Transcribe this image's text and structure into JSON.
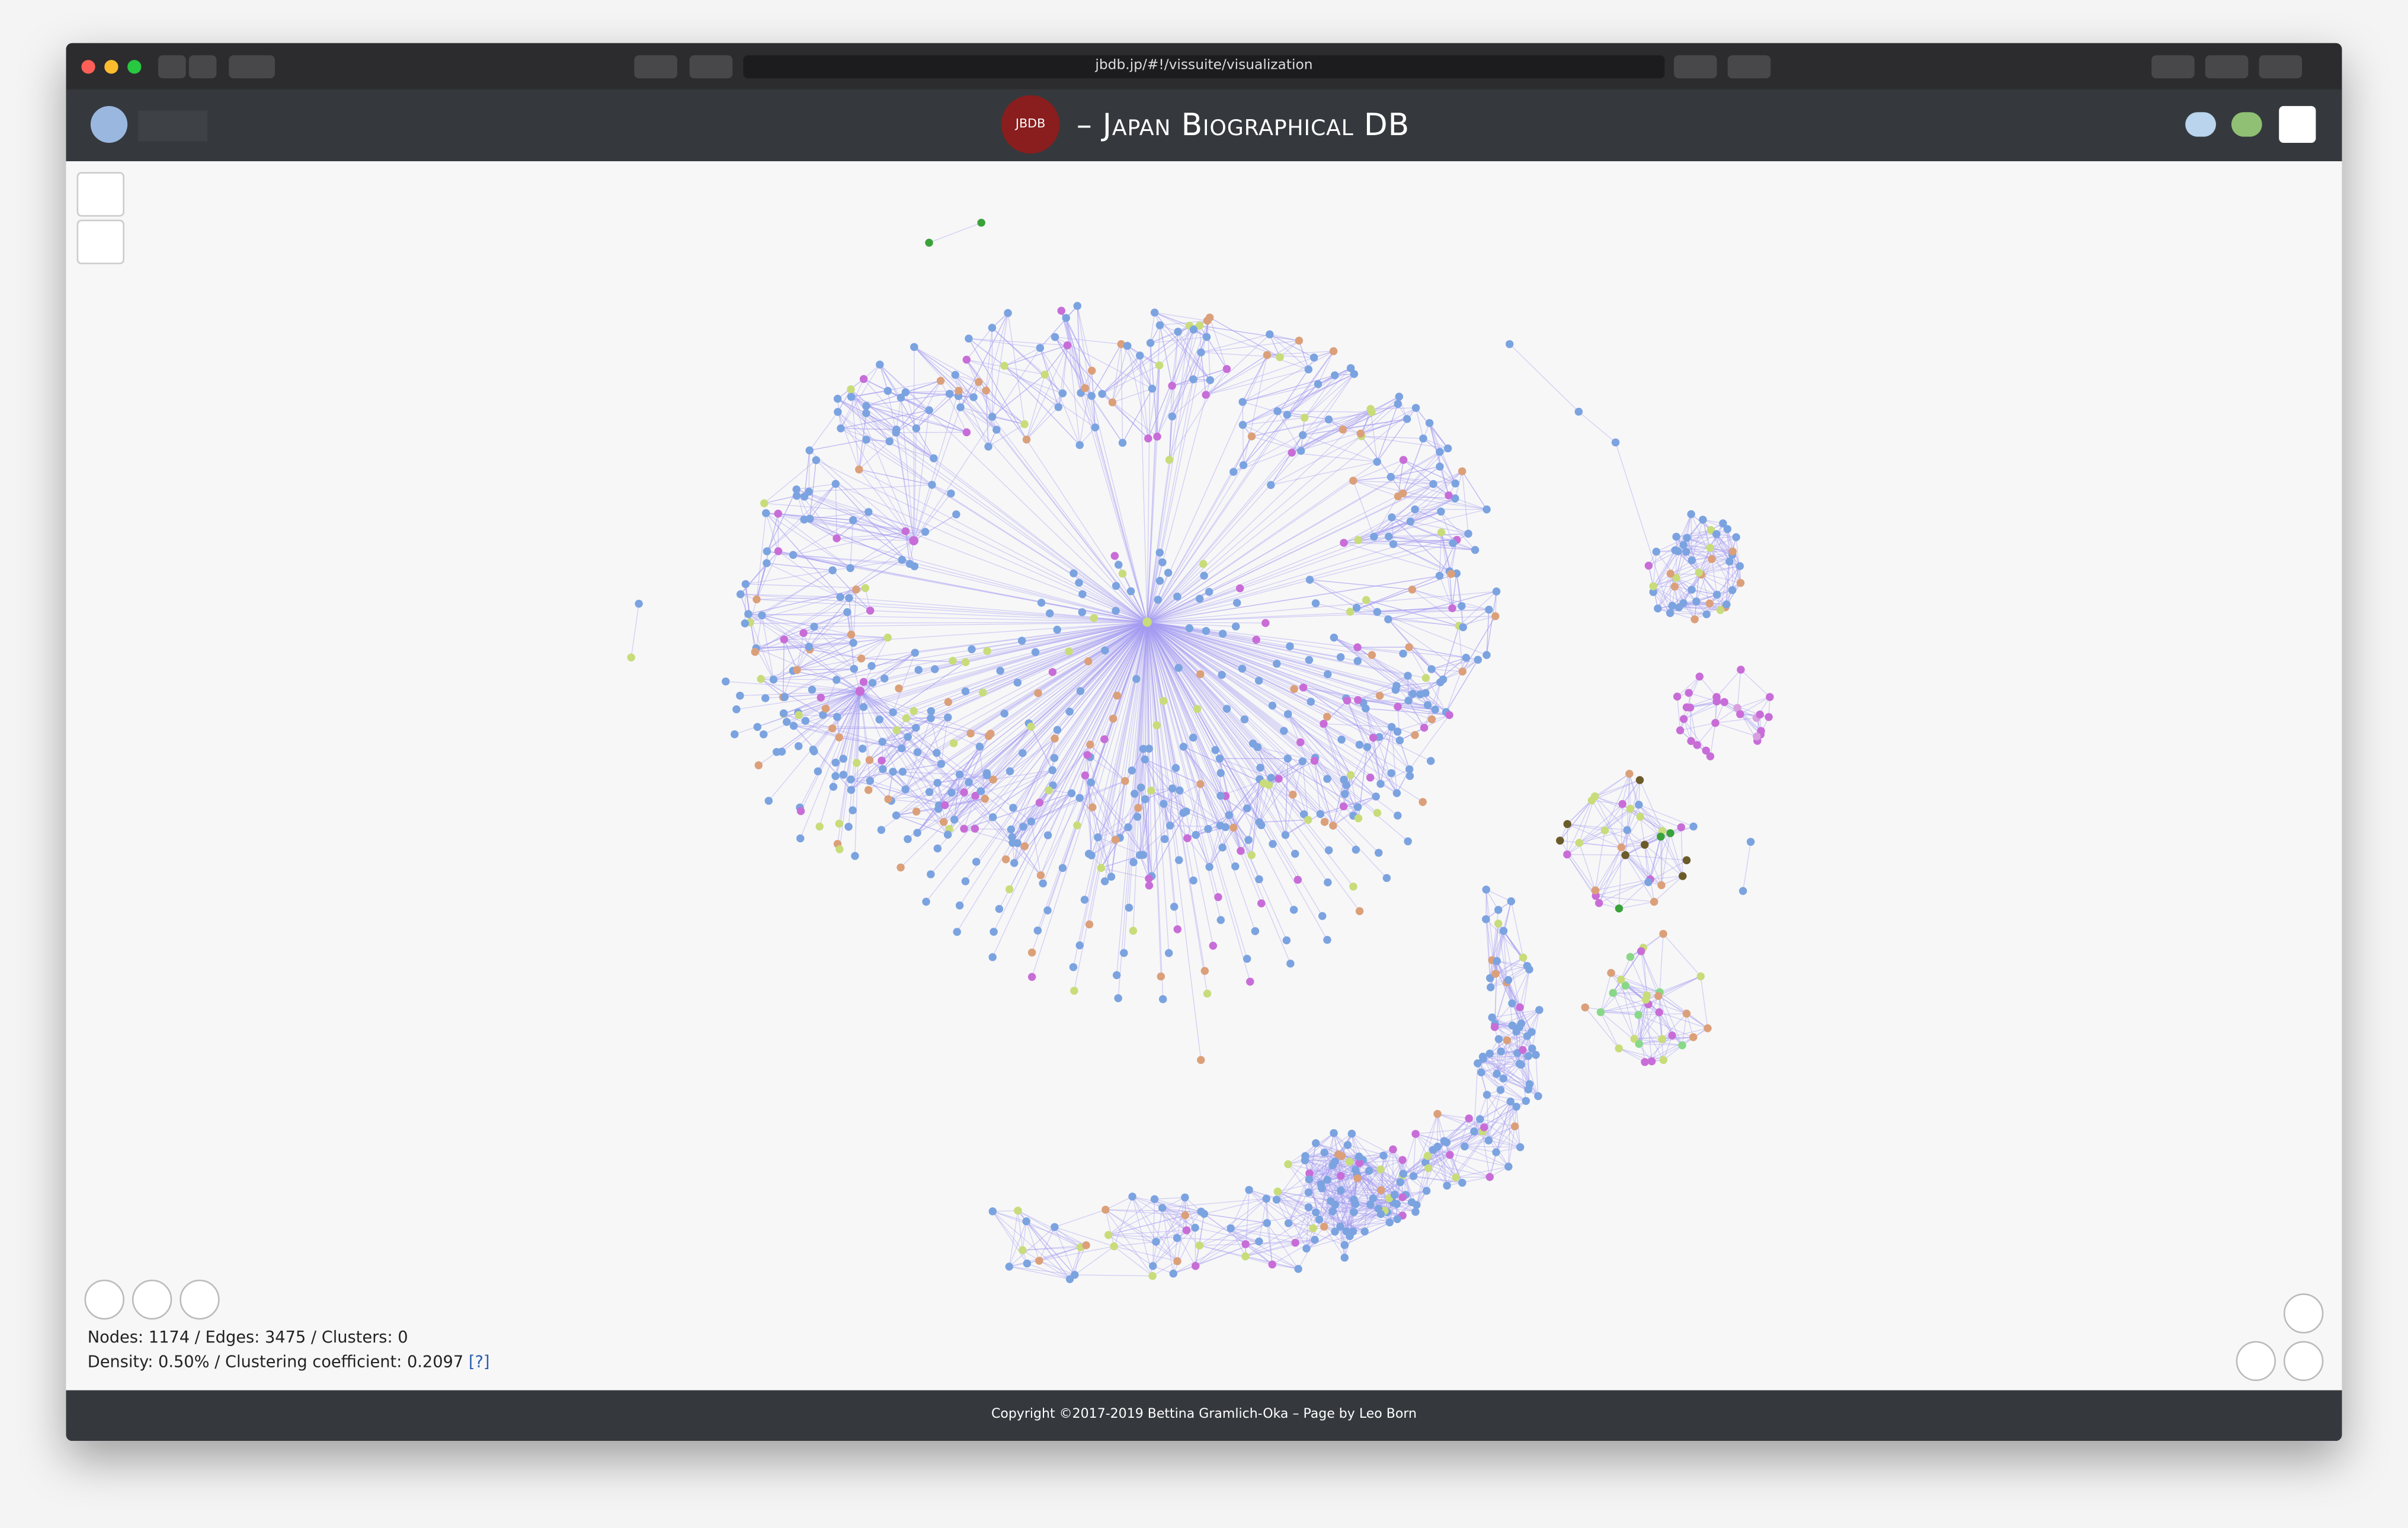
{
  "browser": {
    "url": "jbdb.jp/#!/vissuite/visualization"
  },
  "header": {
    "logo": "JBDB",
    "title": "– Japan Biographical DB"
  },
  "stats": {
    "line1": "Nodes: 1174 / Edges: 3475 / Clusters: 0",
    "line2": "Density: 0.50% / Clustering coefficient: 0.2097",
    "help": "[?]"
  },
  "footer": {
    "copyright": "Copyright ©2017-2019 Bettina Gramlich-Oka – Page by Leo Born"
  }
}
